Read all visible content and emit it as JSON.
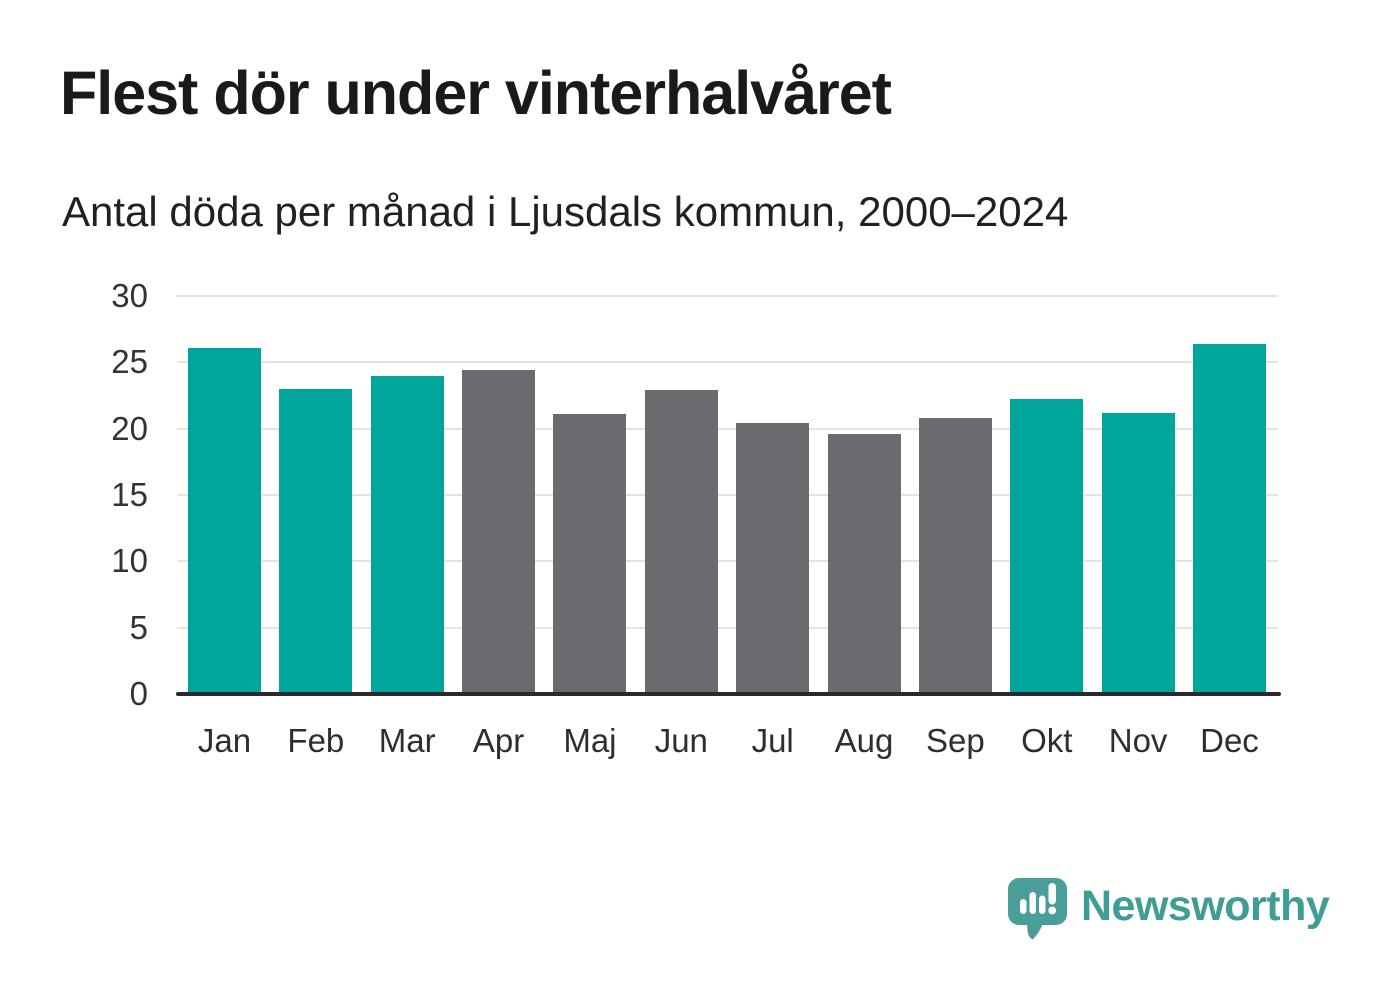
{
  "header": {
    "title": "Flest dör under vinterhalvåret",
    "subtitle": "Antal döda per månad i Ljusdals kommun, 2000–2024"
  },
  "chart_data": {
    "type": "bar",
    "title": "Flest dör under vinterhalvåret",
    "subtitle": "Antal döda per månad i Ljusdals kommun, 2000–2024",
    "categories": [
      "Jan",
      "Feb",
      "Mar",
      "Apr",
      "Maj",
      "Jun",
      "Jul",
      "Aug",
      "Sep",
      "Okt",
      "Nov",
      "Dec"
    ],
    "values": [
      26.1,
      23.0,
      24.0,
      24.4,
      21.1,
      22.9,
      20.4,
      19.6,
      20.8,
      22.2,
      21.2,
      26.4
    ],
    "bar_groups": [
      "winter",
      "winter",
      "winter",
      "summer",
      "summer",
      "summer",
      "summer",
      "summer",
      "summer",
      "winter",
      "winter",
      "winter"
    ],
    "bar_palette": {
      "winter": "#00a69c",
      "summer": "#6a6a6f"
    },
    "xlabel": "",
    "ylabel": "",
    "ylim": [
      0,
      30
    ],
    "yticks": [
      0,
      5,
      10,
      15,
      20,
      25,
      30
    ],
    "grid": "horizontal-light",
    "gridline_color": "#e3e3e3",
    "baseline_color": "#2a2a2e",
    "legend": "none"
  },
  "footer": {
    "brand": "Newsworthy",
    "brand_color": "#3f9c96",
    "logo_icon": "newsworthy-speech-bubble-bar-chart-icon",
    "logo_color": "#4a9e99"
  }
}
